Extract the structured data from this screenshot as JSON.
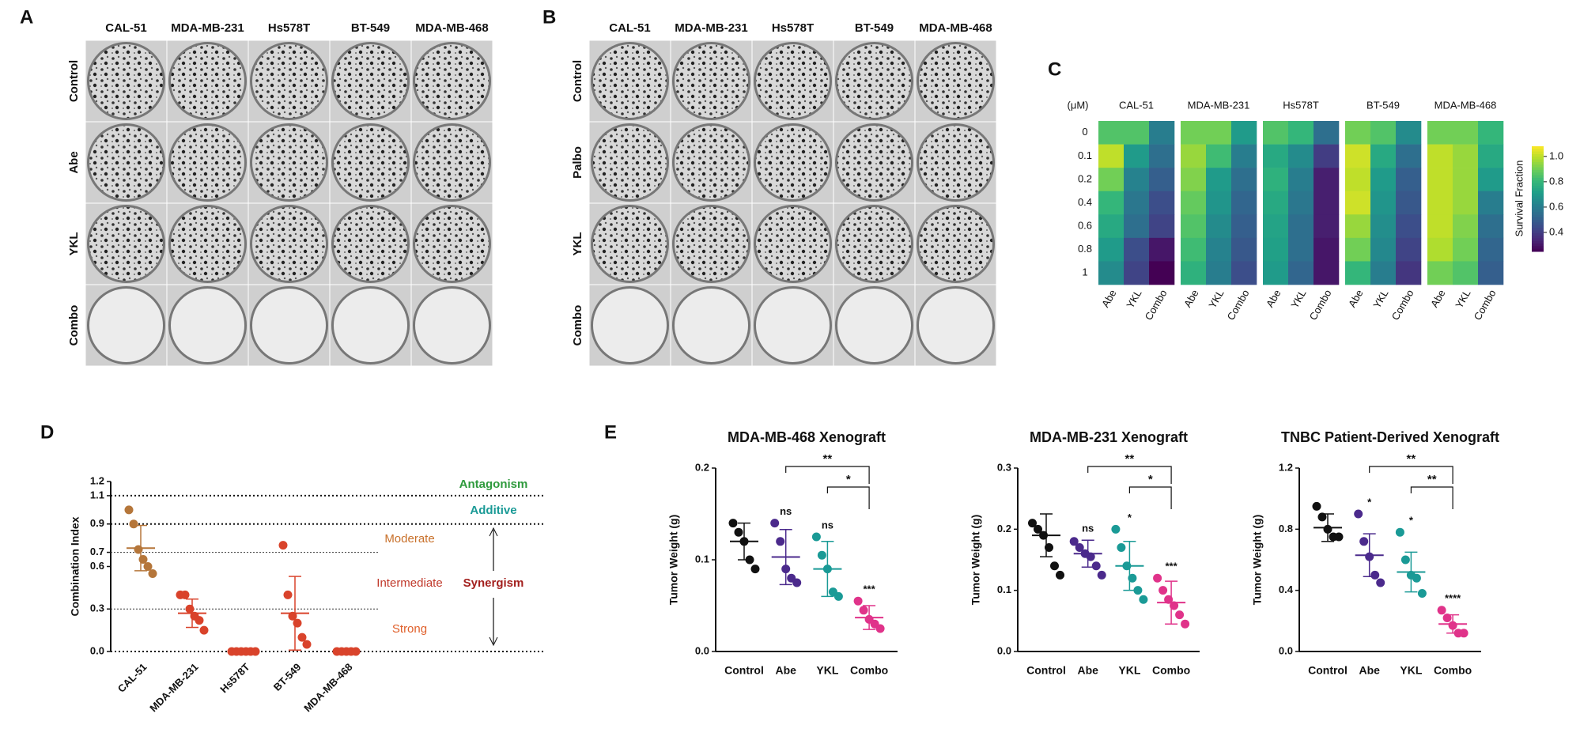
{
  "panel_labels": [
    "A",
    "B",
    "C",
    "D",
    "E"
  ],
  "plates_a": {
    "columns": [
      "CAL-51",
      "MDA-MB-231",
      "Hs578T",
      "BT-549",
      "MDA-MB-468"
    ],
    "rows": [
      "Control",
      "Abe",
      "YKL",
      "Combo"
    ]
  },
  "plates_b": {
    "columns": [
      "CAL-51",
      "MDA-MB-231",
      "Hs578T",
      "BT-549",
      "MDA-MB-468"
    ],
    "rows": [
      "Control",
      "Palbo",
      "YKL",
      "Combo"
    ]
  },
  "chart_data": [
    {
      "type": "heatmap",
      "row_unit": "(μM)",
      "rows": [
        0,
        0.1,
        0.2,
        0.4,
        0.6,
        0.8,
        1
      ],
      "columns": [
        "Abe",
        "YKL",
        "Combo"
      ],
      "colormap": "viridis",
      "clim": [
        0.25,
        1.08
      ],
      "colorbar_label": "Survival Fraction",
      "colorbar_ticks": [
        0.4,
        0.6,
        0.8,
        {
          "value": 1,
          "label": "1.0"
        }
      ],
      "groups": [
        {
          "name": "CAL-51",
          "values": [
            [
              0.85,
              0.85,
              0.6
            ],
            [
              1.0,
              0.7,
              0.55
            ],
            [
              0.9,
              0.62,
              0.5
            ],
            [
              0.8,
              0.58,
              0.45
            ],
            [
              0.75,
              0.55,
              0.42
            ],
            [
              0.7,
              0.45,
              0.3
            ],
            [
              0.65,
              0.42,
              0.25
            ]
          ]
        },
        {
          "name": "MDA-MB-231",
          "values": [
            [
              0.9,
              0.9,
              0.7
            ],
            [
              0.95,
              0.82,
              0.6
            ],
            [
              0.92,
              0.7,
              0.55
            ],
            [
              0.88,
              0.68,
              0.52
            ],
            [
              0.85,
              0.65,
              0.5
            ],
            [
              0.82,
              0.62,
              0.48
            ],
            [
              0.78,
              0.6,
              0.45
            ]
          ]
        },
        {
          "name": "Hs578T",
          "values": [
            [
              0.85,
              0.8,
              0.55
            ],
            [
              0.75,
              0.65,
              0.4
            ],
            [
              0.78,
              0.6,
              0.32
            ],
            [
              0.75,
              0.58,
              0.32
            ],
            [
              0.73,
              0.55,
              0.32
            ],
            [
              0.72,
              0.55,
              0.3
            ],
            [
              0.7,
              0.52,
              0.3
            ]
          ]
        },
        {
          "name": "BT-549",
          "values": [
            [
              0.9,
              0.85,
              0.65
            ],
            [
              1.02,
              0.75,
              0.55
            ],
            [
              1.0,
              0.7,
              0.5
            ],
            [
              1.02,
              0.68,
              0.48
            ],
            [
              0.95,
              0.66,
              0.45
            ],
            [
              0.9,
              0.64,
              0.42
            ],
            [
              0.8,
              0.6,
              0.38
            ]
          ]
        },
        {
          "name": "MDA-MB-468",
          "values": [
            [
              0.9,
              0.9,
              0.8
            ],
            [
              1.0,
              0.95,
              0.75
            ],
            [
              1.0,
              0.95,
              0.7
            ],
            [
              1.0,
              0.95,
              0.6
            ],
            [
              1.0,
              0.92,
              0.55
            ],
            [
              0.98,
              0.9,
              0.52
            ],
            [
              0.9,
              0.85,
              0.5
            ]
          ]
        }
      ]
    },
    {
      "type": "dot",
      "ylabel": "Combination Index",
      "ylim": [
        0,
        1.2
      ],
      "yticks": [
        {
          "value": 0,
          "label": "0.0"
        },
        0.3,
        0.6,
        0.7,
        0.9,
        1.1,
        1.2
      ],
      "categories": [
        "CAL-51",
        "MDA-MB-231",
        "Hs578T",
        "BT-549",
        "MDA-MB-468"
      ],
      "colors": [
        "#b5763a",
        "#d9432b",
        "#d9432b",
        "#d9432b",
        "#d9432b"
      ],
      "points": [
        [
          1.0,
          0.9,
          0.72,
          0.65,
          0.6,
          0.55
        ],
        [
          0.4,
          0.4,
          0.3,
          0.25,
          0.22,
          0.15
        ],
        [
          0,
          0,
          0,
          0,
          0,
          0
        ],
        [
          0.75,
          0.4,
          0.25,
          0.2,
          0.1,
          0.05
        ],
        [
          0,
          0,
          0,
          0,
          0
        ]
      ],
      "means": [
        0.73,
        0.27,
        null,
        0.27,
        null
      ],
      "sds": [
        0.16,
        0.1,
        null,
        0.26,
        null
      ],
      "ref_lines": [
        1.1,
        0.9,
        0
      ],
      "minor_ref_lines": [
        0.7,
        0.3
      ],
      "annotations": [
        {
          "text": "Antagonism",
          "color": "#2e9a3c"
        },
        {
          "text": "Additive",
          "color": "#1a9a96"
        },
        {
          "text": "Moderate",
          "color": "#c8702a"
        },
        {
          "text": "Intermediate",
          "color": "#c0392b"
        },
        {
          "text": "Strong",
          "color": "#e0602b"
        },
        {
          "text": "Synergism",
          "color": "#a3201e"
        }
      ]
    },
    {
      "type": "dot",
      "title": "MDA-MB-468 Xenograft",
      "ylabel": "Tumor Weight (g)",
      "ylim": [
        0,
        0.2
      ],
      "yticks": [
        {
          "value": 0,
          "label": "0.0"
        },
        0.1,
        0.2
      ],
      "categories": [
        "Control",
        "Abe",
        "YKL",
        "Combo"
      ],
      "colors": [
        "#111111",
        "#4b2a8c",
        "#1a9a96",
        "#e0338a"
      ],
      "points": [
        [
          0.14,
          0.13,
          0.12,
          0.1,
          0.09
        ],
        [
          0.14,
          0.12,
          0.09,
          0.08,
          0.075
        ],
        [
          0.125,
          0.105,
          0.09,
          0.065,
          0.06
        ],
        [
          0.055,
          0.045,
          0.035,
          0.03,
          0.025
        ]
      ],
      "means": [
        0.12,
        0.103,
        0.09,
        0.037
      ],
      "sds": [
        0.02,
        0.03,
        0.03,
        0.013
      ],
      "sig_labels": [
        null,
        "ns",
        "ns",
        "***"
      ],
      "brackets": [
        "**",
        "*"
      ]
    },
    {
      "type": "dot",
      "title": "MDA-MB-231 Xenograft",
      "ylabel": "Tumor Weight (g)",
      "ylim": [
        0,
        0.3
      ],
      "yticks": [
        {
          "value": 0,
          "label": "0.0"
        },
        0.1,
        0.2,
        0.3
      ],
      "categories": [
        "Control",
        "Abe",
        "YKL",
        "Combo"
      ],
      "colors": [
        "#111111",
        "#4b2a8c",
        "#1a9a96",
        "#e0338a"
      ],
      "points": [
        [
          0.21,
          0.2,
          0.19,
          0.17,
          0.14,
          0.125
        ],
        [
          0.18,
          0.17,
          0.16,
          0.155,
          0.14,
          0.125
        ],
        [
          0.2,
          0.17,
          0.14,
          0.12,
          0.1,
          0.085
        ],
        [
          0.12,
          0.1,
          0.085,
          0.075,
          0.06,
          0.045
        ]
      ],
      "means": [
        0.19,
        0.16,
        0.14,
        0.08
      ],
      "sds": [
        0.035,
        0.022,
        0.04,
        0.035
      ],
      "sig_labels": [
        null,
        "ns",
        "*",
        "***"
      ],
      "brackets": [
        "**",
        "*"
      ]
    },
    {
      "type": "dot",
      "title": "TNBC Patient-Derived Xenograft",
      "ylabel": "Tumor Weight (g)",
      "ylim": [
        0,
        1.2
      ],
      "yticks": [
        {
          "value": 0,
          "label": "0.0"
        },
        0.4,
        0.8,
        1.2
      ],
      "categories": [
        "Control",
        "Abe",
        "YKL",
        "Combo"
      ],
      "colors": [
        "#111111",
        "#4b2a8c",
        "#1a9a96",
        "#e0338a"
      ],
      "points": [
        [
          0.95,
          0.88,
          0.8,
          0.75,
          0.75
        ],
        [
          0.9,
          0.72,
          0.62,
          0.5,
          0.45
        ],
        [
          0.78,
          0.6,
          0.5,
          0.48,
          0.38
        ],
        [
          0.27,
          0.22,
          0.17,
          0.12,
          0.12
        ]
      ],
      "means": [
        0.81,
        0.63,
        0.52,
        0.18
      ],
      "sds": [
        0.09,
        0.14,
        0.13,
        0.06
      ],
      "sig_labels": [
        null,
        "*",
        "*",
        "****"
      ],
      "brackets": [
        "**",
        "**"
      ]
    }
  ]
}
